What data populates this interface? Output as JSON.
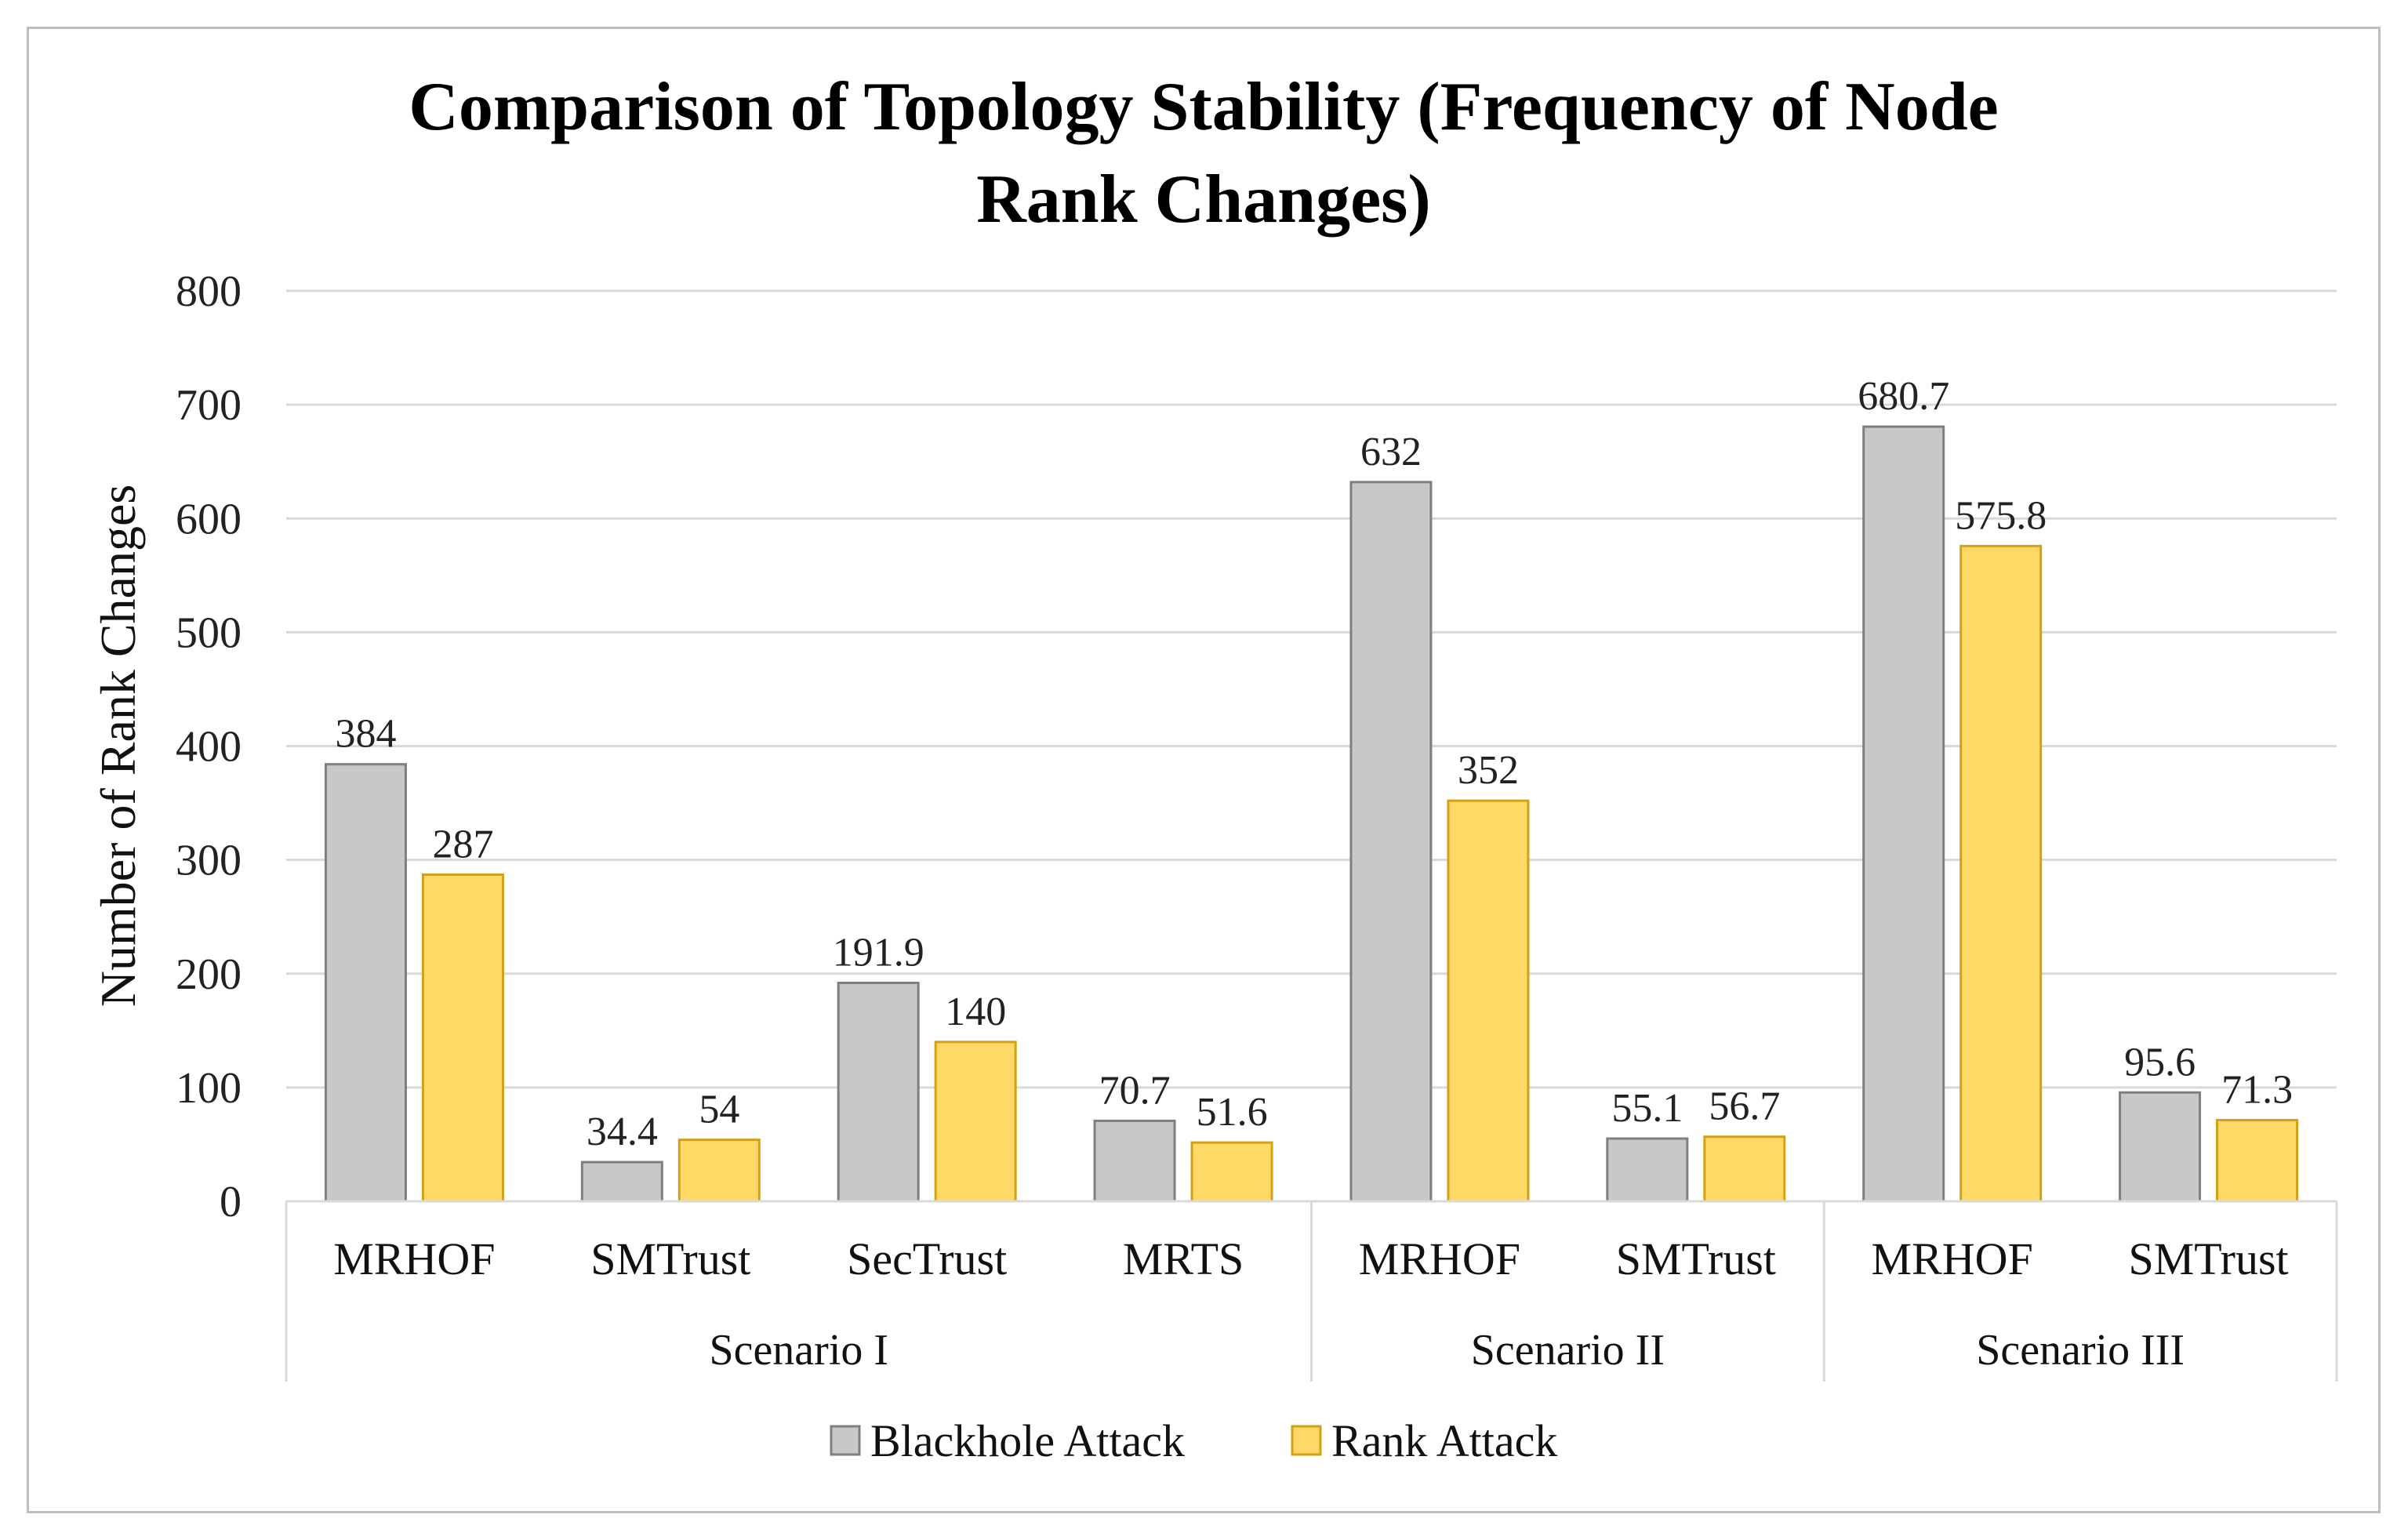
{
  "chart_data": {
    "type": "bar",
    "title": "Comparison of Topology Stability (Frequency of Node Rank Changes)",
    "title_lines": [
      "Comparison of Topology Stability (Frequency of Node",
      "Rank Changes)"
    ],
    "xlabel": "",
    "ylabel": "Number of Rank Changes",
    "ylim": [
      0,
      800
    ],
    "yticks": [
      0,
      100,
      200,
      300,
      400,
      500,
      600,
      700,
      800
    ],
    "grid": true,
    "legend_position": "bottom",
    "groups": [
      {
        "label": "Scenario I",
        "categories": [
          "MRHOF",
          "SMTrust",
          "SecTrust",
          "MRTS"
        ]
      },
      {
        "label": "Scenario II",
        "categories": [
          "MRHOF",
          "SMTrust"
        ]
      },
      {
        "label": "Scenario III",
        "categories": [
          "MRHOF",
          "SMTrust"
        ]
      }
    ],
    "categories": [
      "MRHOF",
      "SMTrust",
      "SecTrust",
      "MRTS",
      "MRHOF",
      "SMTrust",
      "MRHOF",
      "SMTrust"
    ],
    "series": [
      {
        "name": "Blackhole Attack",
        "color": "#c8c8c8",
        "stroke": "#7f7f7f",
        "values": [
          384,
          34.4,
          191.9,
          70.7,
          632,
          55.1,
          680.7,
          95.6
        ],
        "labels": [
          "384",
          "34.4",
          "191.9",
          "70.7",
          "632",
          "55.1",
          "680.7",
          "95.6"
        ]
      },
      {
        "name": "Rank Attack",
        "color": "#ffd966",
        "stroke": "#d4a017",
        "values": [
          287,
          54,
          140,
          51.6,
          352,
          56.7,
          575.8,
          71.3
        ],
        "labels": [
          "287",
          "54",
          "140",
          "51.6",
          "352",
          "56.7",
          "575.8",
          "71.3"
        ]
      }
    ]
  }
}
